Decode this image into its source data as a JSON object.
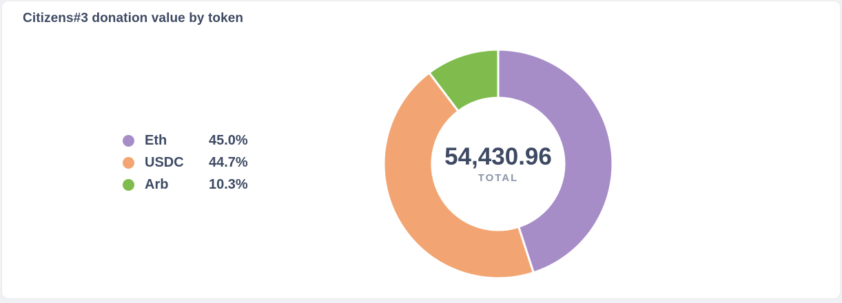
{
  "legend": {
    "items": [
      {
        "label": "Eth",
        "value": "45.0%",
        "color": "#a78dc8"
      },
      {
        "label": "USDC",
        "value": "44.7%",
        "color": "#f2a572"
      },
      {
        "label": "Arb",
        "value": "10.3%",
        "color": "#7fbc4d"
      }
    ]
  },
  "chart_data": {
    "type": "pie",
    "variant": "donut",
    "title": "Citizens#3 donation value by token",
    "categories": [
      "Eth",
      "USDC",
      "Arb"
    ],
    "values": [
      45.0,
      44.7,
      10.3
    ],
    "unit": "percent",
    "colors": [
      "#a78dc8",
      "#f2a572",
      "#7fbc4d"
    ],
    "center_label": "54,430.96",
    "center_sublabel": "TOTAL",
    "start_angle_deg": -90,
    "direction": "clockwise",
    "inner_radius_ratio": 0.58,
    "slice_gap_color": "#ffffff",
    "legend_position": "left"
  },
  "colors": {
    "text_primary": "#3e4a63",
    "text_muted": "#8b95a7",
    "card_background": "#ffffff",
    "card_border": "#ececec",
    "page_background": "#f0f1f4"
  }
}
